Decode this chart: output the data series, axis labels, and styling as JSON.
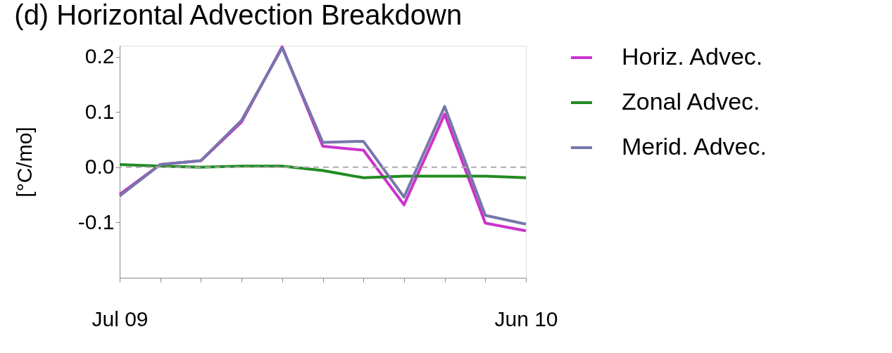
{
  "chart_data": {
    "type": "line",
    "title": "(d) Horizontal Advection Breakdown",
    "ylabel": "[°C/mo]",
    "categories": [
      "Jul 09",
      null,
      null,
      null,
      null,
      null,
      null,
      null,
      null,
      null,
      "Jun 10"
    ],
    "series": [
      {
        "name": "Horiz. Advec.",
        "color": "#cc33cc",
        "values": [
          -0.049,
          0.005,
          0.012,
          0.082,
          0.218,
          0.038,
          0.031,
          -0.068,
          0.096,
          -0.101,
          -0.115
        ]
      },
      {
        "name": "Zonal Advec.",
        "color": "#228b22",
        "values": [
          0.005,
          0.002,
          0.0,
          0.002,
          0.002,
          -0.006,
          -0.019,
          -0.016,
          -0.016,
          -0.016,
          -0.019
        ]
      },
      {
        "name": "Merid. Advec.",
        "color": "#7777aa",
        "values": [
          -0.052,
          0.005,
          0.012,
          0.085,
          0.216,
          0.045,
          0.047,
          -0.054,
          0.11,
          -0.087,
          -0.103
        ]
      }
    ],
    "ylim": [
      -0.2,
      0.22
    ],
    "yticks": [
      {
        "value": 0.2,
        "label": "0.2"
      },
      {
        "value": 0.1,
        "label": "0.1"
      },
      {
        "value": 0,
        "label": "0.0"
      },
      {
        "value": -0.1,
        "label": "-0.1"
      }
    ],
    "ref_lines": [
      {
        "axis": "y",
        "value": 0,
        "label": null,
        "color": "#aaaaaa",
        "line_style": "dashed"
      }
    ],
    "grid": false,
    "legend": "right",
    "marker": "none",
    "line_style": "solid"
  }
}
